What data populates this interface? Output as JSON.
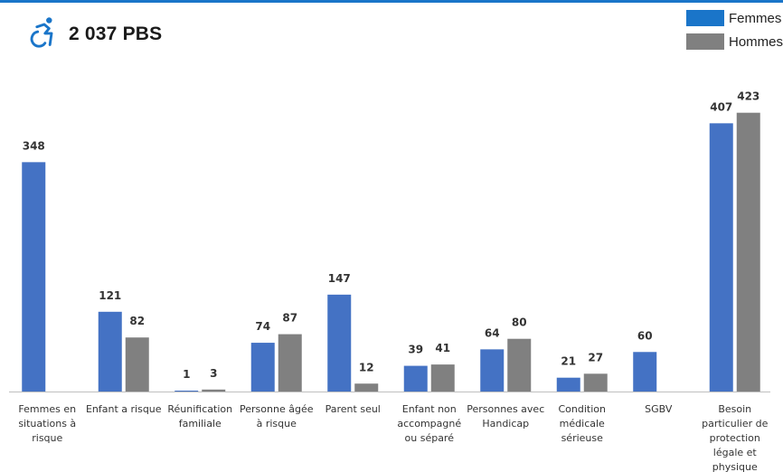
{
  "header": {
    "title": "2 037 PBS",
    "icon": "wheelchair-accessible-icon"
  },
  "colors": {
    "femmes": "#4472c4",
    "hommes": "#808080",
    "icon": "#1a75c9",
    "rule": "#1a75c9"
  },
  "legend": [
    {
      "label": "Femmes",
      "color": "#1a75c9"
    },
    {
      "label": "Hommes",
      "color": "#808080"
    }
  ],
  "chart_data": {
    "type": "bar",
    "title": "2 037 PBS",
    "categories": [
      [
        "Femmes en",
        "situations à",
        "risque"
      ],
      [
        "Enfant a risque"
      ],
      [
        "Réunification",
        "familiale"
      ],
      [
        "Personne âgée",
        "à risque"
      ],
      [
        "Parent seul"
      ],
      [
        "Enfant non",
        "accompagné",
        "ou séparé"
      ],
      [
        "Personnes avec",
        "Handicap"
      ],
      [
        "Condition",
        "médicale",
        "sérieuse"
      ],
      [
        "SGBV"
      ],
      [
        "Besoin",
        "particulier de",
        "protection",
        "légale et",
        "physique"
      ]
    ],
    "series": [
      {
        "name": "Femmes",
        "values": [
          348,
          121,
          1,
          74,
          147,
          39,
          64,
          21,
          60,
          407
        ]
      },
      {
        "name": "Hommes",
        "values": [
          null,
          82,
          3,
          87,
          12,
          41,
          80,
          27,
          null,
          423
        ]
      }
    ],
    "ylim": [
      0,
      450
    ],
    "grid": false,
    "legend_position": "top-right"
  }
}
